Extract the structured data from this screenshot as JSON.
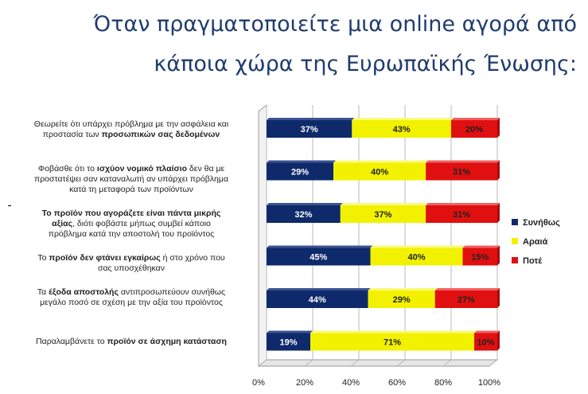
{
  "title_line1": "Όταν πραγματοποιείτε μια online αγορά από",
  "title_line2": "κάποια χώρα της Ευρωπαϊκής Ένωσης:",
  "colors": {
    "often": "#0e2a6b",
    "rarely": "#f2f200",
    "never": "#e01010",
    "title": "#1f3c6e"
  },
  "chart_data": {
    "type": "bar",
    "orientation": "horizontal",
    "stacked": "percent",
    "categories": [
      "Θεωρείτε ότι υπάρχει πρόβλημα με την ασφάλεια και προστασία των προσωπικών σας δεδομένων",
      "Φοβάσθε ότι το ισχύον νομικό πλαίσιο δεν θα με προστατέψει σαν καταναλωτή αν υπάρχει πρόβλημα κατά τη μεταφορά των προϊόντων",
      "Το προϊόν που αγοράζετε είναι πάντα μικρής αξίας, διότι φοβάστε μήπως συμβεί κάποιο πρόβλημα κατά την αποστολή του προϊόντος",
      "Το προϊόν δεν φτάνει εγκαίρως ή στο χρόνο που σας υποσχέθηκαν",
      "Τα έξοδα αποστολής αντιπροσωπεύουν συνήθως μεγάλο ποσό σε σχέση με την αξία του προϊόντος",
      "Παραλαμβάνετε το προϊόν σε άσχημη κατάσταση"
    ],
    "series": [
      {
        "name": "Συνήθως",
        "values": [
          37,
          29,
          32,
          45,
          44,
          19
        ]
      },
      {
        "name": "Αραιά",
        "values": [
          43,
          40,
          37,
          40,
          29,
          71
        ]
      },
      {
        "name": "Ποτέ",
        "values": [
          20,
          31,
          31,
          15,
          27,
          10
        ]
      }
    ],
    "data_labels": [
      [
        "37%",
        "43%",
        "20%"
      ],
      [
        "29%",
        "40%",
        "31%"
      ],
      [
        "32%",
        "37%",
        "31%"
      ],
      [
        "45%",
        "40%",
        "15%"
      ],
      [
        "44%",
        "29%",
        "27%"
      ],
      [
        "19%",
        "71%",
        "10%"
      ]
    ],
    "xlim": [
      0,
      100
    ],
    "xticks": [
      "0%",
      "20%",
      "40%",
      "60%",
      "80%",
      "100%"
    ],
    "grid": true,
    "legend_position": "right"
  },
  "labels": [
    {
      "a": "Θεωρείτε ότι υπάρχει πρόβλημα με την ασφάλεια και",
      "b": "προστασία των ",
      "bold": "προσωπικών σας δεδομένων",
      "c": ""
    },
    {
      "a": "Φοβάσθε ότι το ",
      "bold": "ισχύον νομικό πλαίσιο",
      "b": " δεν θα με",
      "c": "προστατέψει σαν καταναλωτή αν υπάρχει πρόβλημα",
      "d": "κατά τη μεταφορά των προϊόντων"
    },
    {
      "bold": "Το προϊόν που αγοράζετε είναι πάντα μικρής",
      "bold2": "αξίας",
      "b": ", διότι φοβάστε μήπως συμβεί κάποιο",
      "c": "πρόβλημα κατά την αποστολή του προϊόντος"
    },
    {
      "a": "Το ",
      "bold": "προϊόν δεν φτάνει εγκαίρως",
      "b": " ή στο χρόνο που",
      "c": "σας υποσχέθηκαν"
    },
    {
      "a": "Τα ",
      "bold": "έξοδα αποστολής",
      "b": " αντιπροσωπεύουν συνήθως",
      "c": "μεγάλο ποσό σε σχέση με την αξία του προϊόντος"
    },
    {
      "a": "Παραλαμβάνετε το ",
      "bold": "προϊόν σε άσχημη κατάσταση"
    }
  ]
}
